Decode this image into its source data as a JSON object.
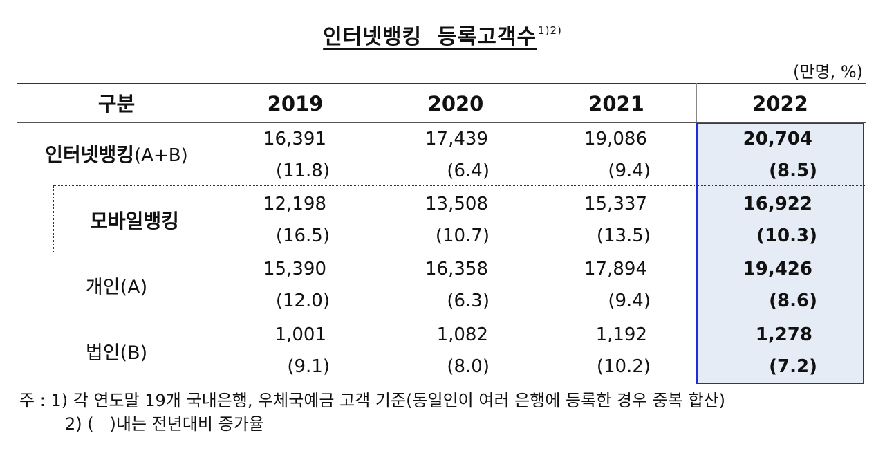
{
  "title": "인터넷뱅킹  등록고객수",
  "title_superscript": "1)2)",
  "unit": "(만명, %)",
  "table": {
    "header": {
      "category": "구분",
      "years": [
        "2019",
        "2020",
        "2021",
        "2022"
      ]
    },
    "rows": [
      {
        "label": "인터넷뱅킹",
        "label_suffix": "(A+B)",
        "values": [
          "16,391",
          "17,439",
          "19,086",
          "20,704"
        ],
        "growth": [
          "(11.8)",
          "(6.4)",
          "(9.4)",
          "(8.5)"
        ]
      },
      {
        "label": "모바일뱅킹",
        "label_suffix": "",
        "values": [
          "12,198",
          "13,508",
          "15,337",
          "16,922"
        ],
        "growth": [
          "(16.5)",
          "(10.7)",
          "(13.5)",
          "(10.3)"
        ]
      },
      {
        "label": "개인(A)",
        "label_suffix": "",
        "values": [
          "15,390",
          "16,358",
          "17,894",
          "19,426"
        ],
        "growth": [
          "(12.0)",
          "(6.3)",
          "(9.4)",
          "(8.6)"
        ]
      },
      {
        "label": "법인(B)",
        "label_suffix": "",
        "values": [
          "1,001",
          "1,082",
          "1,192",
          "1,278"
        ],
        "growth": [
          "(9.1)",
          "(8.0)",
          "(10.2)",
          "(7.2)"
        ]
      }
    ],
    "highlight_color": "#1a2dd6",
    "highlight_fill": "#e6ecf6"
  },
  "notes": {
    "note1": "주 : 1) 각 연도말 19개 국내은행, 우체국예금 고객 기준(동일인이 여러 은행에 등록한 경우 중복 합산)",
    "note2": "2) (   )내는 전년대비 증가율"
  }
}
